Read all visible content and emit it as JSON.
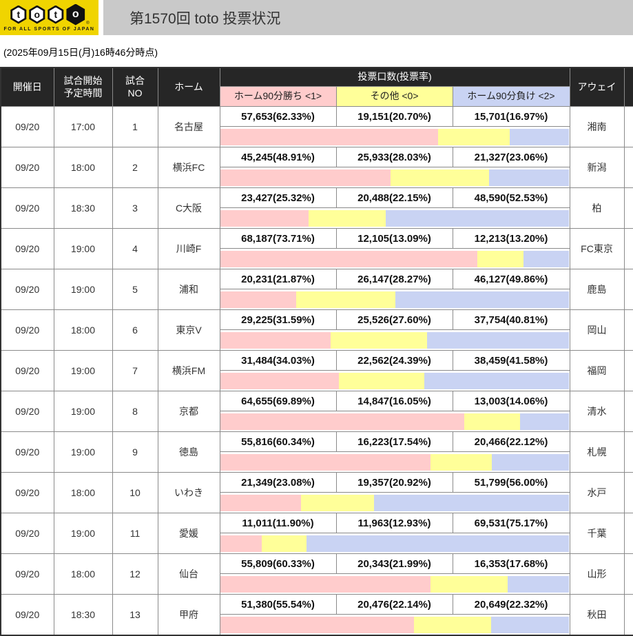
{
  "header": {
    "logo": {
      "letters": [
        "t",
        "o",
        "t",
        "o"
      ],
      "registered_mark": "®",
      "tagline": "FOR ALL SPORTS OF JAPAN"
    },
    "title": "第1570回 toto 投票状況"
  },
  "timestamp": "(2025年09月15日(月)16時46分時点)",
  "colors": {
    "win_pink": "#FFCCCC",
    "other_yellow": "#FFFF99",
    "lose_blue": "#C9D3F3",
    "logo_yellow": "#F0D400",
    "titlebar_gray": "#C9C9C9",
    "header_black": "#262626"
  },
  "table": {
    "col_headers": {
      "date": "開催日",
      "time": "試合開始\n予定時間",
      "no": "試合\nNO",
      "home": "ホーム",
      "votes": "投票口数(投票率)",
      "away": "アウェイ"
    },
    "sub_headers": {
      "win": "ホーム90分勝ち <1>",
      "other": "その他 <0>",
      "lose": "ホーム90分負け <2>"
    },
    "rows": [
      {
        "date": "09/20",
        "time": "17:00",
        "no": "1",
        "home": "名古屋",
        "away": "湘南",
        "win": {
          "text": "57,653(62.33%)",
          "pct": 62.33
        },
        "other": {
          "text": "19,151(20.70%)",
          "pct": 20.7
        },
        "lose": {
          "text": "15,701(16.97%)",
          "pct": 16.97
        }
      },
      {
        "date": "09/20",
        "time": "18:00",
        "no": "2",
        "home": "横浜FC",
        "away": "新潟",
        "win": {
          "text": "45,245(48.91%)",
          "pct": 48.91
        },
        "other": {
          "text": "25,933(28.03%)",
          "pct": 28.03
        },
        "lose": {
          "text": "21,327(23.06%)",
          "pct": 23.06
        }
      },
      {
        "date": "09/20",
        "time": "18:30",
        "no": "3",
        "home": "C大阪",
        "away": "柏",
        "win": {
          "text": "23,427(25.32%)",
          "pct": 25.32
        },
        "other": {
          "text": "20,488(22.15%)",
          "pct": 22.15
        },
        "lose": {
          "text": "48,590(52.53%)",
          "pct": 52.53
        }
      },
      {
        "date": "09/20",
        "time": "19:00",
        "no": "4",
        "home": "川崎F",
        "away": "FC東京",
        "win": {
          "text": "68,187(73.71%)",
          "pct": 73.71
        },
        "other": {
          "text": "12,105(13.09%)",
          "pct": 13.09
        },
        "lose": {
          "text": "12,213(13.20%)",
          "pct": 13.2
        }
      },
      {
        "date": "09/20",
        "time": "19:00",
        "no": "5",
        "home": "浦和",
        "away": "鹿島",
        "win": {
          "text": "20,231(21.87%)",
          "pct": 21.87
        },
        "other": {
          "text": "26,147(28.27%)",
          "pct": 28.27
        },
        "lose": {
          "text": "46,127(49.86%)",
          "pct": 49.86
        }
      },
      {
        "date": "09/20",
        "time": "18:00",
        "no": "6",
        "home": "東京V",
        "away": "岡山",
        "win": {
          "text": "29,225(31.59%)",
          "pct": 31.59
        },
        "other": {
          "text": "25,526(27.60%)",
          "pct": 27.6
        },
        "lose": {
          "text": "37,754(40.81%)",
          "pct": 40.81
        }
      },
      {
        "date": "09/20",
        "time": "19:00",
        "no": "7",
        "home": "横浜FM",
        "away": "福岡",
        "win": {
          "text": "31,484(34.03%)",
          "pct": 34.03
        },
        "other": {
          "text": "22,562(24.39%)",
          "pct": 24.39
        },
        "lose": {
          "text": "38,459(41.58%)",
          "pct": 41.58
        }
      },
      {
        "date": "09/20",
        "time": "19:00",
        "no": "8",
        "home": "京都",
        "away": "清水",
        "win": {
          "text": "64,655(69.89%)",
          "pct": 69.89
        },
        "other": {
          "text": "14,847(16.05%)",
          "pct": 16.05
        },
        "lose": {
          "text": "13,003(14.06%)",
          "pct": 14.06
        }
      },
      {
        "date": "09/20",
        "time": "19:00",
        "no": "9",
        "home": "徳島",
        "away": "札幌",
        "win": {
          "text": "55,816(60.34%)",
          "pct": 60.34
        },
        "other": {
          "text": "16,223(17.54%)",
          "pct": 17.54
        },
        "lose": {
          "text": "20,466(22.12%)",
          "pct": 22.12
        }
      },
      {
        "date": "09/20",
        "time": "18:00",
        "no": "10",
        "home": "いわき",
        "away": "水戸",
        "win": {
          "text": "21,349(23.08%)",
          "pct": 23.08
        },
        "other": {
          "text": "19,357(20.92%)",
          "pct": 20.92
        },
        "lose": {
          "text": "51,799(56.00%)",
          "pct": 56.0
        }
      },
      {
        "date": "09/20",
        "time": "19:00",
        "no": "11",
        "home": "愛媛",
        "away": "千葉",
        "win": {
          "text": "11,011(11.90%)",
          "pct": 11.9
        },
        "other": {
          "text": "11,963(12.93%)",
          "pct": 12.93
        },
        "lose": {
          "text": "69,531(75.17%)",
          "pct": 75.17
        }
      },
      {
        "date": "09/20",
        "time": "18:00",
        "no": "12",
        "home": "仙台",
        "away": "山形",
        "win": {
          "text": "55,809(60.33%)",
          "pct": 60.33
        },
        "other": {
          "text": "20,343(21.99%)",
          "pct": 21.99
        },
        "lose": {
          "text": "16,353(17.68%)",
          "pct": 17.68
        }
      },
      {
        "date": "09/20",
        "time": "18:30",
        "no": "13",
        "home": "甲府",
        "away": "秋田",
        "win": {
          "text": "51,380(55.54%)",
          "pct": 55.54
        },
        "other": {
          "text": "20,476(22.14%)",
          "pct": 22.14
        },
        "lose": {
          "text": "20,649(22.32%)",
          "pct": 22.32
        }
      }
    ]
  }
}
